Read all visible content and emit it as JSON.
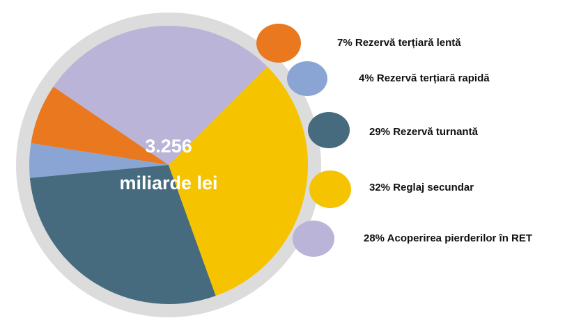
{
  "chart_data": {
    "type": "pie",
    "categories": [
      "Rezervă terțiară lentă",
      "Rezervă terțiară rapidă",
      "Rezervă turnantă",
      "Reglaj secundar",
      "Acoperirea pierderilor în RET"
    ],
    "values": [
      7,
      4,
      29,
      32,
      28
    ],
    "value_labels": [
      "7%",
      "4%",
      "29%",
      "32%",
      "28%"
    ],
    "colors": [
      "#e9781f",
      "#8aa5d4",
      "#466a7e",
      "#f5c300",
      "#b9b4d8"
    ],
    "center_labels": [
      "3.256",
      "miliarde lei"
    ]
  }
}
